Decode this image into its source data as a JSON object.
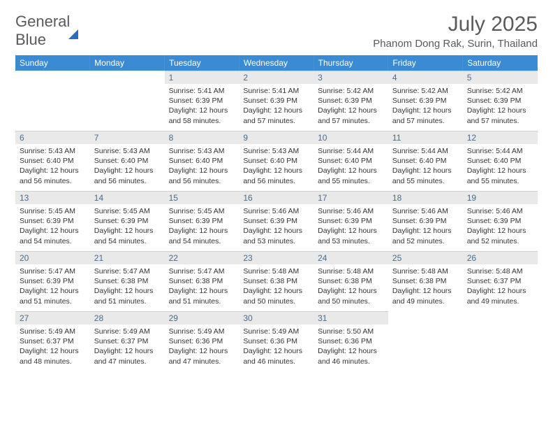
{
  "logo": {
    "text1": "General",
    "text2": "Blue"
  },
  "title": "July 2025",
  "location": "Phanom Dong Rak, Surin, Thailand",
  "colors": {
    "header_bg": "#3b8bd4",
    "header_text": "#ffffff",
    "daynum_bg": "#e9e9e9",
    "daynum_text": "#4a6b8a",
    "body_text": "#333333",
    "title_text": "#5a5a5a",
    "logo_blue": "#3b7fc4"
  },
  "weekdays": [
    "Sunday",
    "Monday",
    "Tuesday",
    "Wednesday",
    "Thursday",
    "Friday",
    "Saturday"
  ],
  "leading_blanks": 2,
  "days": [
    {
      "n": 1,
      "sunrise": "5:41 AM",
      "sunset": "6:39 PM",
      "daylight": "12 hours and 58 minutes."
    },
    {
      "n": 2,
      "sunrise": "5:41 AM",
      "sunset": "6:39 PM",
      "daylight": "12 hours and 57 minutes."
    },
    {
      "n": 3,
      "sunrise": "5:42 AM",
      "sunset": "6:39 PM",
      "daylight": "12 hours and 57 minutes."
    },
    {
      "n": 4,
      "sunrise": "5:42 AM",
      "sunset": "6:39 PM",
      "daylight": "12 hours and 57 minutes."
    },
    {
      "n": 5,
      "sunrise": "5:42 AM",
      "sunset": "6:39 PM",
      "daylight": "12 hours and 57 minutes."
    },
    {
      "n": 6,
      "sunrise": "5:43 AM",
      "sunset": "6:40 PM",
      "daylight": "12 hours and 56 minutes."
    },
    {
      "n": 7,
      "sunrise": "5:43 AM",
      "sunset": "6:40 PM",
      "daylight": "12 hours and 56 minutes."
    },
    {
      "n": 8,
      "sunrise": "5:43 AM",
      "sunset": "6:40 PM",
      "daylight": "12 hours and 56 minutes."
    },
    {
      "n": 9,
      "sunrise": "5:43 AM",
      "sunset": "6:40 PM",
      "daylight": "12 hours and 56 minutes."
    },
    {
      "n": 10,
      "sunrise": "5:44 AM",
      "sunset": "6:40 PM",
      "daylight": "12 hours and 55 minutes."
    },
    {
      "n": 11,
      "sunrise": "5:44 AM",
      "sunset": "6:40 PM",
      "daylight": "12 hours and 55 minutes."
    },
    {
      "n": 12,
      "sunrise": "5:44 AM",
      "sunset": "6:40 PM",
      "daylight": "12 hours and 55 minutes."
    },
    {
      "n": 13,
      "sunrise": "5:45 AM",
      "sunset": "6:39 PM",
      "daylight": "12 hours and 54 minutes."
    },
    {
      "n": 14,
      "sunrise": "5:45 AM",
      "sunset": "6:39 PM",
      "daylight": "12 hours and 54 minutes."
    },
    {
      "n": 15,
      "sunrise": "5:45 AM",
      "sunset": "6:39 PM",
      "daylight": "12 hours and 54 minutes."
    },
    {
      "n": 16,
      "sunrise": "5:46 AM",
      "sunset": "6:39 PM",
      "daylight": "12 hours and 53 minutes."
    },
    {
      "n": 17,
      "sunrise": "5:46 AM",
      "sunset": "6:39 PM",
      "daylight": "12 hours and 53 minutes."
    },
    {
      "n": 18,
      "sunrise": "5:46 AM",
      "sunset": "6:39 PM",
      "daylight": "12 hours and 52 minutes."
    },
    {
      "n": 19,
      "sunrise": "5:46 AM",
      "sunset": "6:39 PM",
      "daylight": "12 hours and 52 minutes."
    },
    {
      "n": 20,
      "sunrise": "5:47 AM",
      "sunset": "6:39 PM",
      "daylight": "12 hours and 51 minutes."
    },
    {
      "n": 21,
      "sunrise": "5:47 AM",
      "sunset": "6:38 PM",
      "daylight": "12 hours and 51 minutes."
    },
    {
      "n": 22,
      "sunrise": "5:47 AM",
      "sunset": "6:38 PM",
      "daylight": "12 hours and 51 minutes."
    },
    {
      "n": 23,
      "sunrise": "5:48 AM",
      "sunset": "6:38 PM",
      "daylight": "12 hours and 50 minutes."
    },
    {
      "n": 24,
      "sunrise": "5:48 AM",
      "sunset": "6:38 PM",
      "daylight": "12 hours and 50 minutes."
    },
    {
      "n": 25,
      "sunrise": "5:48 AM",
      "sunset": "6:38 PM",
      "daylight": "12 hours and 49 minutes."
    },
    {
      "n": 26,
      "sunrise": "5:48 AM",
      "sunset": "6:37 PM",
      "daylight": "12 hours and 49 minutes."
    },
    {
      "n": 27,
      "sunrise": "5:49 AM",
      "sunset": "6:37 PM",
      "daylight": "12 hours and 48 minutes."
    },
    {
      "n": 28,
      "sunrise": "5:49 AM",
      "sunset": "6:37 PM",
      "daylight": "12 hours and 47 minutes."
    },
    {
      "n": 29,
      "sunrise": "5:49 AM",
      "sunset": "6:36 PM",
      "daylight": "12 hours and 47 minutes."
    },
    {
      "n": 30,
      "sunrise": "5:49 AM",
      "sunset": "6:36 PM",
      "daylight": "12 hours and 46 minutes."
    },
    {
      "n": 31,
      "sunrise": "5:50 AM",
      "sunset": "6:36 PM",
      "daylight": "12 hours and 46 minutes."
    }
  ],
  "labels": {
    "sunrise": "Sunrise:",
    "sunset": "Sunset:",
    "daylight": "Daylight:"
  }
}
